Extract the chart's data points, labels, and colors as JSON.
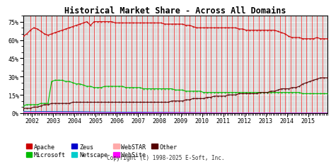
{
  "title": "Historical Market Share - Across All Domains",
  "copyright": "Copyright (c) 1998-2025 E-Soft, Inc.",
  "xlim": [
    2001.58,
    2015.92
  ],
  "ylim": [
    0,
    80
  ],
  "yticks": [
    0,
    15,
    30,
    45,
    60,
    75
  ],
  "xtick_years": [
    2002,
    2003,
    2004,
    2005,
    2006,
    2007,
    2008,
    2009,
    2010,
    2011,
    2012,
    2013,
    2014,
    2015
  ],
  "bg_color": "#ffffff",
  "plot_bg_color": "#d8d8d8",
  "grid_color": "#ffffff",
  "red_vlines": [
    2001.92,
    2002.17,
    2002.42,
    2002.67,
    2002.92,
    2003.17,
    2003.42,
    2003.67,
    2003.92,
    2004.17,
    2004.42,
    2004.67,
    2004.92,
    2005.17,
    2005.42,
    2005.67,
    2005.92,
    2006.17,
    2006.42,
    2006.67,
    2006.92,
    2007.17,
    2007.42,
    2007.67,
    2007.92,
    2008.17,
    2008.42,
    2008.67,
    2008.92,
    2009.17,
    2009.42,
    2009.67,
    2009.92,
    2010.17,
    2010.42,
    2010.67,
    2010.92,
    2011.17,
    2011.42,
    2011.67,
    2011.92,
    2012.17,
    2012.42,
    2012.67,
    2012.92,
    2013.17,
    2013.42,
    2013.67,
    2013.92,
    2014.17,
    2014.42,
    2014.67,
    2014.92,
    2015.17,
    2015.42,
    2015.67,
    2015.92
  ],
  "apache_x": [
    2001.58,
    2001.75,
    2001.92,
    2002.08,
    2002.25,
    2002.42,
    2002.58,
    2002.75,
    2002.92,
    2003.08,
    2003.25,
    2003.42,
    2003.58,
    2003.75,
    2003.92,
    2004.08,
    2004.25,
    2004.42,
    2004.58,
    2004.75,
    2004.92,
    2005.08,
    2005.25,
    2005.42,
    2005.58,
    2005.75,
    2005.92,
    2006.08,
    2006.25,
    2006.42,
    2006.58,
    2006.75,
    2006.92,
    2007.08,
    2007.25,
    2007.42,
    2007.58,
    2007.75,
    2007.92,
    2008.08,
    2008.25,
    2008.42,
    2008.58,
    2008.75,
    2008.92,
    2009.08,
    2009.25,
    2009.42,
    2009.58,
    2009.75,
    2009.92,
    2010.08,
    2010.25,
    2010.42,
    2010.58,
    2010.75,
    2010.92,
    2011.08,
    2011.25,
    2011.42,
    2011.58,
    2011.75,
    2011.92,
    2012.08,
    2012.25,
    2012.42,
    2012.58,
    2012.75,
    2012.92,
    2013.08,
    2013.25,
    2013.42,
    2013.58,
    2013.75,
    2013.92,
    2014.08,
    2014.25,
    2014.42,
    2014.58,
    2014.75,
    2014.92,
    2015.08,
    2015.25,
    2015.42,
    2015.58,
    2015.75,
    2015.92
  ],
  "apache_y": [
    63,
    65,
    68,
    70,
    69,
    67,
    65,
    64,
    65,
    66,
    67,
    68,
    69,
    70,
    71,
    72,
    73,
    74,
    75,
    72,
    75,
    75,
    75,
    75,
    75,
    75,
    74,
    74,
    74,
    74,
    74,
    74,
    74,
    74,
    74,
    74,
    74,
    74,
    74,
    74,
    73,
    73,
    73,
    73,
    73,
    73,
    72,
    72,
    71,
    70,
    70,
    70,
    70,
    70,
    70,
    70,
    70,
    70,
    70,
    70,
    70,
    69,
    69,
    68,
    68,
    68,
    68,
    68,
    68,
    68,
    68,
    68,
    67,
    66,
    65,
    63,
    62,
    62,
    62,
    61,
    61,
    61,
    61,
    62,
    61,
    61,
    61
  ],
  "microsoft_x": [
    2001.58,
    2001.75,
    2001.92,
    2002.08,
    2002.25,
    2002.42,
    2002.58,
    2002.75,
    2002.92,
    2003.08,
    2003.25,
    2003.42,
    2003.58,
    2003.75,
    2003.92,
    2004.08,
    2004.25,
    2004.42,
    2004.58,
    2004.75,
    2004.92,
    2005.08,
    2005.25,
    2005.42,
    2005.58,
    2005.75,
    2005.92,
    2006.08,
    2006.25,
    2006.42,
    2006.58,
    2006.75,
    2006.92,
    2007.08,
    2007.25,
    2007.42,
    2007.58,
    2007.75,
    2007.92,
    2008.08,
    2008.25,
    2008.42,
    2008.58,
    2008.75,
    2008.92,
    2009.08,
    2009.25,
    2009.42,
    2009.58,
    2009.75,
    2009.92,
    2010.08,
    2010.25,
    2010.42,
    2010.58,
    2010.75,
    2010.92,
    2011.08,
    2011.25,
    2011.42,
    2011.58,
    2011.75,
    2011.92,
    2012.08,
    2012.25,
    2012.42,
    2012.58,
    2012.75,
    2012.92,
    2013.08,
    2013.25,
    2013.42,
    2013.58,
    2013.75,
    2013.92,
    2014.08,
    2014.25,
    2014.42,
    2014.58,
    2014.75,
    2014.92,
    2015.08,
    2015.25,
    2015.42,
    2015.58,
    2015.75,
    2015.92
  ],
  "microsoft_y": [
    6,
    7,
    7,
    7,
    7,
    8,
    8,
    8,
    26,
    27,
    27,
    27,
    26,
    26,
    25,
    24,
    24,
    23,
    22,
    22,
    21,
    21,
    21,
    22,
    22,
    22,
    22,
    22,
    22,
    21,
    21,
    21,
    21,
    21,
    20,
    20,
    20,
    20,
    20,
    20,
    20,
    20,
    20,
    19,
    19,
    19,
    18,
    18,
    18,
    18,
    18,
    17,
    17,
    17,
    17,
    17,
    17,
    17,
    17,
    17,
    17,
    17,
    17,
    17,
    17,
    17,
    17,
    17,
    17,
    17,
    17,
    17,
    17,
    17,
    17,
    17,
    17,
    17,
    17,
    16,
    16,
    16,
    16,
    16,
    16,
    16,
    16
  ],
  "other_x": [
    2001.58,
    2001.75,
    2001.92,
    2002.08,
    2002.25,
    2002.42,
    2002.58,
    2002.75,
    2002.92,
    2003.08,
    2003.25,
    2003.42,
    2003.58,
    2003.75,
    2003.92,
    2004.08,
    2004.25,
    2004.42,
    2004.58,
    2004.75,
    2004.92,
    2005.08,
    2005.25,
    2005.42,
    2005.58,
    2005.75,
    2005.92,
    2006.08,
    2006.25,
    2006.42,
    2006.58,
    2006.75,
    2006.92,
    2007.08,
    2007.25,
    2007.42,
    2007.58,
    2007.75,
    2007.92,
    2008.08,
    2008.25,
    2008.42,
    2008.58,
    2008.75,
    2008.92,
    2009.08,
    2009.25,
    2009.42,
    2009.58,
    2009.75,
    2009.92,
    2010.08,
    2010.25,
    2010.42,
    2010.58,
    2010.75,
    2010.92,
    2011.08,
    2011.25,
    2011.42,
    2011.58,
    2011.75,
    2011.92,
    2012.08,
    2012.25,
    2012.42,
    2012.58,
    2012.75,
    2012.92,
    2013.08,
    2013.25,
    2013.42,
    2013.58,
    2013.75,
    2013.92,
    2014.08,
    2014.25,
    2014.42,
    2014.58,
    2014.75,
    2014.92,
    2015.08,
    2015.25,
    2015.42,
    2015.58,
    2015.75,
    2015.92
  ],
  "other_y": [
    4,
    4,
    4,
    5,
    5,
    6,
    7,
    7,
    8,
    8,
    8,
    8,
    8,
    8,
    9,
    9,
    9,
    9,
    9,
    9,
    9,
    9,
    9,
    9,
    9,
    9,
    9,
    9,
    9,
    9,
    9,
    9,
    9,
    9,
    9,
    9,
    9,
    9,
    9,
    9,
    9,
    9,
    10,
    10,
    10,
    10,
    11,
    11,
    12,
    12,
    12,
    12,
    13,
    13,
    14,
    14,
    14,
    14,
    15,
    15,
    15,
    16,
    16,
    16,
    16,
    16,
    16,
    17,
    17,
    17,
    18,
    18,
    19,
    20,
    20,
    20,
    21,
    21,
    22,
    24,
    25,
    26,
    27,
    28,
    29,
    29,
    29
  ],
  "zeus_x": [
    2001.58,
    2002.5,
    2003.5,
    2004.5,
    2005.5,
    2006.5,
    2007.5,
    2008.5,
    2009.5,
    2010.5,
    2011.5,
    2012.5,
    2013.5,
    2014.5,
    2015.92
  ],
  "zeus_y": [
    1.5,
    1.4,
    1.3,
    1.2,
    1.0,
    0.9,
    0.7,
    0.6,
    0.5,
    0.4,
    0.3,
    0.25,
    0.2,
    0.15,
    0.1
  ],
  "netscape_x": [
    2001.58,
    2002.5,
    2003.5,
    2004.5,
    2005.5,
    2006.5,
    2007.5,
    2008.5,
    2009.5,
    2010.5,
    2011.5,
    2012.5,
    2013.5,
    2014.5,
    2015.92
  ],
  "netscape_y": [
    1.2,
    1.1,
    1.0,
    0.9,
    0.7,
    0.6,
    0.5,
    0.4,
    0.3,
    0.25,
    0.2,
    0.15,
    0.1,
    0.1,
    0.1
  ],
  "webstar_x": [
    2001.58,
    2002.5,
    2003.5,
    2004.5,
    2005.5,
    2006.5,
    2007.5,
    2008.5,
    2009.5,
    2010.5,
    2011.5,
    2012.5,
    2013.5,
    2014.5,
    2015.92
  ],
  "webstar_y": [
    0.8,
    0.7,
    0.6,
    0.5,
    0.4,
    0.3,
    0.2,
    0.15,
    0.1,
    0.1,
    0.1,
    0.1,
    0.05,
    0.05,
    0.05
  ],
  "website_x": [
    2001.58,
    2002.5,
    2003.5,
    2004.5,
    2005.5,
    2006.5,
    2007.5,
    2008.5,
    2009.5,
    2010.5,
    2011.5,
    2012.5,
    2013.5,
    2014.5,
    2015.92
  ],
  "website_y": [
    0.5,
    0.5,
    0.4,
    0.4,
    0.3,
    0.25,
    0.2,
    0.15,
    0.1,
    0.1,
    0.05,
    0.05,
    0.05,
    0.05,
    0.05
  ],
  "series_colors": {
    "apache": "#cc0000",
    "microsoft": "#00bb00",
    "other": "#550000",
    "zeus": "#0000cc",
    "netscape": "#00cccc",
    "webstar": "#ffaaaa",
    "website": "#ff00ff"
  },
  "legend_items": [
    {
      "label": "Apache",
      "color": "#cc0000"
    },
    {
      "label": "Microsoft",
      "color": "#00bb00"
    },
    {
      "label": "Zeus",
      "color": "#0000cc"
    },
    {
      "label": "Netscape",
      "color": "#00cccc"
    },
    {
      "label": "WebSTAR",
      "color": "#ffaaaa"
    },
    {
      "label": "WebSite",
      "color": "#ff00ff"
    },
    {
      "label": "Other",
      "color": "#550000"
    }
  ]
}
